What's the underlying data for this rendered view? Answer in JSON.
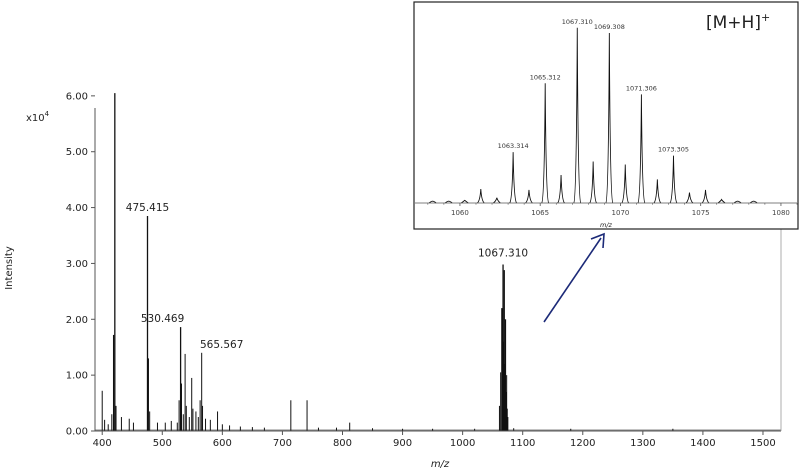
{
  "chart_data": [
    {
      "type": "line",
      "role": "main-spectrum",
      "xlabel": "m/z",
      "ylabel": "Intensity",
      "y_multiplier": "x10",
      "y_multiplier_exp": "4",
      "xlim": [
        388,
        1530
      ],
      "ylim": [
        0,
        7.0
      ],
      "x_ticks": [
        400,
        500,
        600,
        700,
        800,
        900,
        1000,
        1100,
        1200,
        1300,
        1400,
        1500
      ],
      "x_tick_labels": [
        "400",
        "500",
        "600",
        "700",
        "800",
        "900",
        "1000",
        "1100",
        "1200",
        "1300",
        "1400",
        "1500"
      ],
      "y_ticks": [
        0,
        1,
        2,
        3,
        4,
        5,
        6
      ],
      "y_tick_labels": [
        "0.00",
        "1.00",
        "2.00",
        "3.00",
        "4.00",
        "5.00",
        "6.00"
      ],
      "peaks": [
        {
          "x": 400,
          "y": 0.72
        },
        {
          "x": 404,
          "y": 0.2
        },
        {
          "x": 410,
          "y": 0.12
        },
        {
          "x": 416,
          "y": 0.3
        },
        {
          "x": 419,
          "y": 1.72
        },
        {
          "x": 421,
          "y": 6.05
        },
        {
          "x": 423,
          "y": 0.45
        },
        {
          "x": 432,
          "y": 0.25
        },
        {
          "x": 445,
          "y": 0.22
        },
        {
          "x": 452,
          "y": 0.15
        },
        {
          "x": 475.4,
          "y": 3.85
        },
        {
          "x": 477,
          "y": 1.3
        },
        {
          "x": 479,
          "y": 0.35
        },
        {
          "x": 492,
          "y": 0.15
        },
        {
          "x": 505,
          "y": 0.15
        },
        {
          "x": 515,
          "y": 0.18
        },
        {
          "x": 525,
          "y": 0.15
        },
        {
          "x": 528,
          "y": 0.55
        },
        {
          "x": 530.5,
          "y": 1.86
        },
        {
          "x": 532,
          "y": 0.85
        },
        {
          "x": 535,
          "y": 0.3
        },
        {
          "x": 538,
          "y": 1.38
        },
        {
          "x": 540,
          "y": 0.45
        },
        {
          "x": 545,
          "y": 0.25
        },
        {
          "x": 549,
          "y": 0.95
        },
        {
          "x": 551,
          "y": 0.4
        },
        {
          "x": 556,
          "y": 0.35
        },
        {
          "x": 560,
          "y": 0.25
        },
        {
          "x": 563,
          "y": 0.55
        },
        {
          "x": 565.6,
          "y": 1.4
        },
        {
          "x": 567,
          "y": 0.45
        },
        {
          "x": 572,
          "y": 0.22
        },
        {
          "x": 580,
          "y": 0.2
        },
        {
          "x": 592,
          "y": 0.35
        },
        {
          "x": 600,
          "y": 0.12
        },
        {
          "x": 612,
          "y": 0.1
        },
        {
          "x": 630,
          "y": 0.08
        },
        {
          "x": 650,
          "y": 0.07
        },
        {
          "x": 670,
          "y": 0.06
        },
        {
          "x": 714,
          "y": 0.55
        },
        {
          "x": 741,
          "y": 0.55
        },
        {
          "x": 760,
          "y": 0.06
        },
        {
          "x": 790,
          "y": 0.06
        },
        {
          "x": 812,
          "y": 0.15
        },
        {
          "x": 850,
          "y": 0.05
        },
        {
          "x": 900,
          "y": 0.04
        },
        {
          "x": 950,
          "y": 0.04
        },
        {
          "x": 1020,
          "y": 0.04
        },
        {
          "x": 1061.3,
          "y": 0.45
        },
        {
          "x": 1063.3,
          "y": 1.05
        },
        {
          "x": 1065.3,
          "y": 2.2
        },
        {
          "x": 1066.3,
          "y": 0.9
        },
        {
          "x": 1067.3,
          "y": 2.98
        },
        {
          "x": 1068.3,
          "y": 1.6
        },
        {
          "x": 1069.3,
          "y": 2.88
        },
        {
          "x": 1070.3,
          "y": 1.2
        },
        {
          "x": 1071.3,
          "y": 2.0
        },
        {
          "x": 1072.3,
          "y": 0.7
        },
        {
          "x": 1073.3,
          "y": 1.0
        },
        {
          "x": 1074.3,
          "y": 0.4
        },
        {
          "x": 1075.3,
          "y": 0.25
        },
        {
          "x": 1085,
          "y": 0.05
        },
        {
          "x": 1180,
          "y": 0.04
        },
        {
          "x": 1350,
          "y": 0.04
        }
      ],
      "annotations": [
        {
          "text": "475.415",
          "x": 475.4,
          "y": 3.85
        },
        {
          "text": "530.469",
          "x": 530.5,
          "y": 1.86
        },
        {
          "text": "565.567",
          "x": 565.6,
          "y": 1.4
        },
        {
          "text": "1067.310",
          "x": 1067.3,
          "y": 2.98
        }
      ]
    },
    {
      "type": "line",
      "role": "inset-spectrum",
      "title": "[M+H]",
      "title_superscript": "+",
      "xlabel": "m/z",
      "xlim": [
        1057.2,
        1081.0
      ],
      "ylim": [
        0,
        1.05
      ],
      "x_ticks": [
        1060,
        1065,
        1070,
        1075,
        1080
      ],
      "x_tick_labels": [
        "1060",
        "1065",
        "1070",
        "1075",
        "1080"
      ],
      "peaks": [
        {
          "x": 1058.3,
          "y": 0.01
        },
        {
          "x": 1059.3,
          "y": 0.01
        },
        {
          "x": 1060.3,
          "y": 0.015
        },
        {
          "x": 1061.3,
          "y": 0.08
        },
        {
          "x": 1062.3,
          "y": 0.03
        },
        {
          "x": 1063.314,
          "y": 0.29
        },
        {
          "x": 1064.3,
          "y": 0.075
        },
        {
          "x": 1065.312,
          "y": 0.683
        },
        {
          "x": 1066.3,
          "y": 0.16
        },
        {
          "x": 1067.31,
          "y": 1.0
        },
        {
          "x": 1068.3,
          "y": 0.237
        },
        {
          "x": 1069.308,
          "y": 0.97
        },
        {
          "x": 1070.3,
          "y": 0.22
        },
        {
          "x": 1071.306,
          "y": 0.62
        },
        {
          "x": 1072.3,
          "y": 0.135
        },
        {
          "x": 1073.305,
          "y": 0.27
        },
        {
          "x": 1074.3,
          "y": 0.06
        },
        {
          "x": 1075.3,
          "y": 0.075
        },
        {
          "x": 1076.3,
          "y": 0.02
        },
        {
          "x": 1077.3,
          "y": 0.01
        },
        {
          "x": 1078.3,
          "y": 0.01
        }
      ],
      "annotations": [
        {
          "text": "1063.314",
          "x": 1063.314,
          "y": 0.29
        },
        {
          "text": "1065.312",
          "x": 1065.312,
          "y": 0.683
        },
        {
          "text": "1067.310",
          "x": 1067.31,
          "y": 1.0
        },
        {
          "text": "1069.308",
          "x": 1069.308,
          "y": 0.97
        },
        {
          "text": "1071.306",
          "x": 1071.306,
          "y": 0.62
        },
        {
          "text": "1073.305",
          "x": 1073.305,
          "y": 0.27
        }
      ]
    }
  ],
  "colors": {
    "spectrum": "#111111",
    "axis": "#555555",
    "arrow": "#1c2a78",
    "inset_border": "#222222"
  }
}
